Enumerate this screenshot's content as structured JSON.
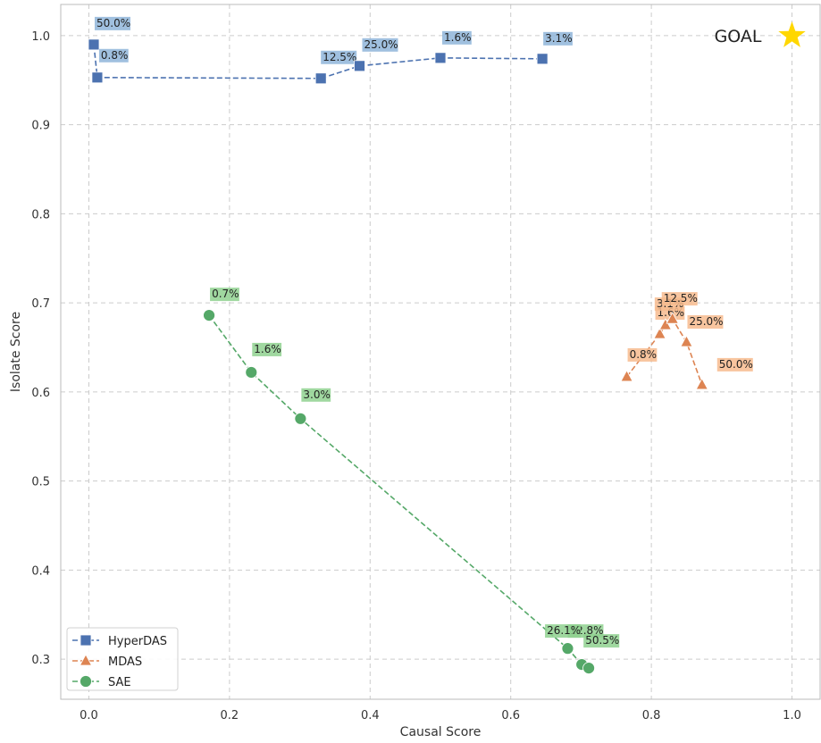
{
  "chart_data": {
    "type": "scatter",
    "xlabel": "Causal Score",
    "ylabel": "Isolate Score",
    "xlim": [
      -0.04,
      1.04
    ],
    "ylim": [
      0.255,
      1.035
    ],
    "x_ticks": [
      "0.0",
      "0.2",
      "0.4",
      "0.6",
      "0.8",
      "1.0"
    ],
    "y_ticks": [
      "0.3",
      "0.4",
      "0.5",
      "0.6",
      "0.7",
      "0.8",
      "0.9",
      "1.0"
    ],
    "grid": true,
    "legend_position": "bottom-left",
    "series": [
      {
        "name": "HyperDAS",
        "marker": "square",
        "color": "#4c72b0",
        "label_bg": "#8fb5d9",
        "points": [
          {
            "x": 0.007,
            "y": 0.99,
            "label": "50.0%"
          },
          {
            "x": 0.012,
            "y": 0.953,
            "label": "0.8%"
          },
          {
            "x": 0.33,
            "y": 0.952,
            "label": "12.5%"
          },
          {
            "x": 0.385,
            "y": 0.966,
            "label": "25.0%"
          },
          {
            "x": 0.5,
            "y": 0.975,
            "label": "1.6%"
          },
          {
            "x": 0.645,
            "y": 0.974,
            "label": "3.1%"
          }
        ]
      },
      {
        "name": "MDAS",
        "marker": "triangle",
        "color": "#dd8452",
        "label_bg": "#f7bb8e",
        "points": [
          {
            "x": 0.765,
            "y": 0.617,
            "label": "0.8%"
          },
          {
            "x": 0.812,
            "y": 0.665,
            "label": "1.6%"
          },
          {
            "x": 0.82,
            "y": 0.675,
            "label": "3.1%"
          },
          {
            "x": 0.83,
            "y": 0.682,
            "label": "12.5%"
          },
          {
            "x": 0.85,
            "y": 0.656,
            "label": "25.0%"
          },
          {
            "x": 0.872,
            "y": 0.608,
            "label": "50.0%"
          }
        ]
      },
      {
        "name": "SAE",
        "marker": "circle",
        "color": "#55a868",
        "label_bg": "#8fd18f",
        "points": [
          {
            "x": 0.171,
            "y": 0.686,
            "label": "0.7%"
          },
          {
            "x": 0.231,
            "y": 0.622,
            "label": "1.6%"
          },
          {
            "x": 0.301,
            "y": 0.57,
            "label": "3.0%"
          },
          {
            "x": 0.681,
            "y": 0.312,
            "label": "12.8%"
          },
          {
            "x": 0.701,
            "y": 0.294,
            "label": "50.5%"
          },
          {
            "x": 0.711,
            "y": 0.29,
            "label": "26.1%"
          }
        ]
      }
    ],
    "annotations": [
      {
        "text": "GOAL",
        "x": 1.0,
        "y": 1.0,
        "marker": "star",
        "color": "#ffd700"
      }
    ]
  }
}
